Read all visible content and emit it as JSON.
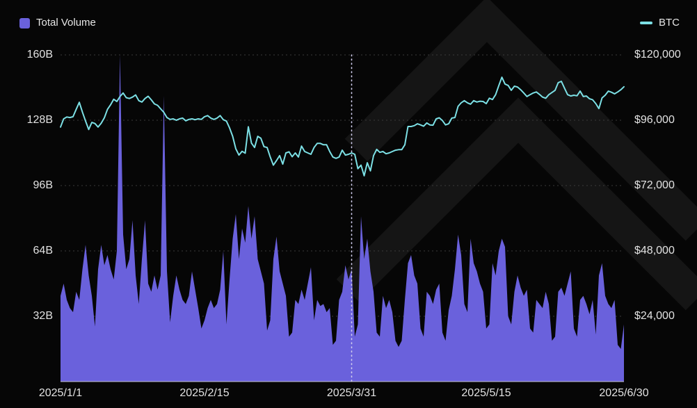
{
  "legend": {
    "volume_label": "Total Volume",
    "btc_label": "BTC"
  },
  "colors": {
    "background": "#060606",
    "volume_fill": "#6A61DC",
    "btc_line": "#7CE0E5",
    "grid": "#3b3b3b",
    "text": "#e2e2e2",
    "watermark": "#151515",
    "marker_line": "#cfccec",
    "baseline": "#d9d9d9"
  },
  "watermark": {
    "name": "exchange-logo-watermark"
  },
  "chart_data": {
    "type": "area",
    "subtype": "area+line dual-axis combo, daily data",
    "x_start": "2025/1/1",
    "x_end": "2025/6/30",
    "grid": "horizontal dashed lines on",
    "legend_position": "top",
    "x_axis": {
      "ticks": [
        {
          "label": "2025/1/1",
          "day": 0
        },
        {
          "label": "2025/2/15",
          "day": 46
        },
        {
          "label": "2025/3/31",
          "day": 93
        },
        {
          "label": "2025/5/15",
          "day": 136
        },
        {
          "label": "2025/6/30",
          "day": 180
        }
      ]
    },
    "y_left": {
      "min": 0,
      "max": 160,
      "unit": "billion USD",
      "ticks": [
        "32B",
        "64B",
        "96B",
        "128B",
        "160B"
      ]
    },
    "y_right": {
      "min": 0,
      "max": 120000,
      "unit": "USD",
      "ticks": [
        "$24,000",
        "$48,000",
        "$72,000",
        "$96,000",
        "$120,000"
      ]
    },
    "marker": {
      "type": "vertical-dotted-line",
      "day": 93
    },
    "series": [
      {
        "name": "Total Volume",
        "type": "area",
        "axis": "left",
        "unit": "billion USD",
        "color": "#6A61DC",
        "values": [
          42,
          48,
          40,
          36,
          34,
          44,
          40,
          55,
          67,
          52,
          42,
          27,
          55,
          67,
          57,
          62,
          55,
          50,
          64,
          160,
          72,
          55,
          60,
          79,
          52,
          38,
          60,
          79,
          48,
          44,
          52,
          45,
          52,
          140,
          54,
          29,
          42,
          52,
          45,
          40,
          38,
          42,
          54,
          45,
          36,
          26,
          30,
          36,
          40,
          36,
          38,
          45,
          64,
          28,
          50,
          70,
          82,
          60,
          75,
          68,
          86,
          70,
          81,
          60,
          54,
          48,
          25,
          30,
          60,
          71,
          54,
          48,
          42,
          22,
          24,
          40,
          38,
          45,
          40,
          48,
          56,
          30,
          40,
          37,
          38,
          34,
          36,
          18,
          20,
          40,
          44,
          57,
          50,
          55,
          22,
          28,
          81,
          60,
          70,
          54,
          44,
          24,
          22,
          42,
          36,
          40,
          34,
          20,
          17,
          20,
          40,
          58,
          62,
          52,
          48,
          26,
          22,
          44,
          42,
          38,
          45,
          48,
          24,
          20,
          35,
          42,
          55,
          72,
          62,
          38,
          34,
          70,
          58,
          54,
          48,
          44,
          26,
          28,
          58,
          52,
          64,
          70,
          66,
          32,
          28,
          44,
          52,
          46,
          42,
          45,
          26,
          24,
          40,
          38,
          36,
          44,
          38,
          20,
          22,
          44,
          46,
          42,
          48,
          54,
          26,
          22,
          40,
          42,
          38,
          33,
          40,
          23,
          52,
          58,
          42,
          38,
          36,
          40,
          18,
          16,
          28
        ]
      },
      {
        "name": "BTC",
        "type": "line",
        "axis": "right",
        "unit": "USD",
        "color": "#7CE0E5",
        "values": [
          93500,
          96500,
          97200,
          97000,
          97300,
          100000,
          102600,
          99000,
          95700,
          92600,
          95200,
          94800,
          93500,
          94900,
          96900,
          100000,
          101700,
          103700,
          102900,
          104700,
          106000,
          104300,
          104000,
          104500,
          105300,
          103200,
          102700,
          104000,
          104800,
          103500,
          102000,
          101500,
          100200,
          98900,
          97000,
          96300,
          96500,
          96000,
          96500,
          96800,
          95800,
          96300,
          96500,
          96200,
          96500,
          96300,
          97300,
          97700,
          96800,
          96300,
          96800,
          97700,
          96200,
          95700,
          93200,
          90100,
          85500,
          83200,
          84600,
          83900,
          93600,
          87600,
          86000,
          90100,
          89400,
          86300,
          86000,
          82500,
          79500,
          81200,
          83000,
          79900,
          84000,
          84400,
          82600,
          84000,
          82500,
          86500,
          84500,
          84000,
          83500,
          86000,
          87500,
          87500,
          87000,
          87000,
          84500,
          82500,
          82000,
          82500,
          85000,
          83200,
          83500,
          84000,
          83500,
          78200,
          79500,
          75600,
          80400,
          77400,
          83000,
          85300,
          84200,
          84500,
          83700,
          84000,
          84500,
          85000,
          85200,
          85200,
          87000,
          93700,
          93700,
          94000,
          94700,
          94300,
          93800,
          95000,
          94300,
          94200,
          96500,
          96900,
          95900,
          94300,
          94700,
          96800,
          97000,
          101100,
          102400,
          103200,
          102400,
          101900,
          103200,
          102700,
          103000,
          102900,
          102100,
          104100,
          103600,
          105400,
          108700,
          111800,
          109300,
          108800,
          107000,
          108500,
          108200,
          107200,
          106000,
          104700,
          105400,
          106000,
          106400,
          105500,
          104500,
          104100,
          105400,
          106200,
          107000,
          109800,
          110300,
          107800,
          105400,
          104900,
          105200,
          105000,
          106700,
          104700,
          104900,
          103900,
          103500,
          102100,
          100300,
          104200,
          105200,
          106700,
          106300,
          105700,
          106400,
          107200,
          108300
        ]
      }
    ]
  }
}
